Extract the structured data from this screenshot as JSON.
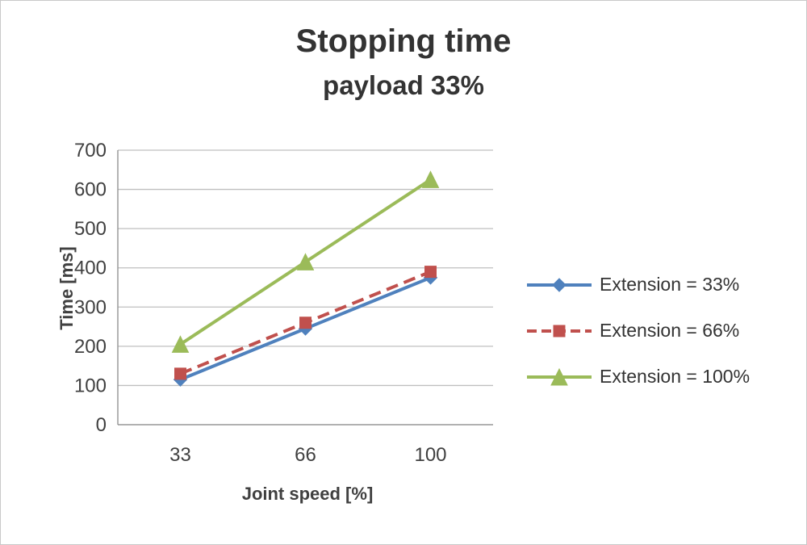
{
  "chart_data": {
    "type": "line",
    "title": "Stopping time",
    "subtitle": "payload 33%",
    "xlabel": "Joint speed [%]",
    "ylabel": "Time [ms]",
    "categories": [
      "33",
      "66",
      "100"
    ],
    "ylim": [
      0,
      700
    ],
    "ytick_step": 100,
    "grid": true,
    "legend_position": "right",
    "colors": {
      "gridline": "#BFBFBF",
      "axis": "#8C8C8C",
      "text": "#404040"
    },
    "series": [
      {
        "name": "Extension = 33%",
        "values": [
          115,
          245,
          375
        ],
        "color": "#4F81BD",
        "marker": "diamond",
        "dash": "solid"
      },
      {
        "name": "Extension = 66%",
        "values": [
          130,
          260,
          390
        ],
        "color": "#C0504D",
        "marker": "square",
        "dash": "dashed"
      },
      {
        "name": "Extension = 100%",
        "values": [
          205,
          415,
          625
        ],
        "color": "#9BBB59",
        "marker": "triangle",
        "dash": "solid"
      }
    ]
  }
}
